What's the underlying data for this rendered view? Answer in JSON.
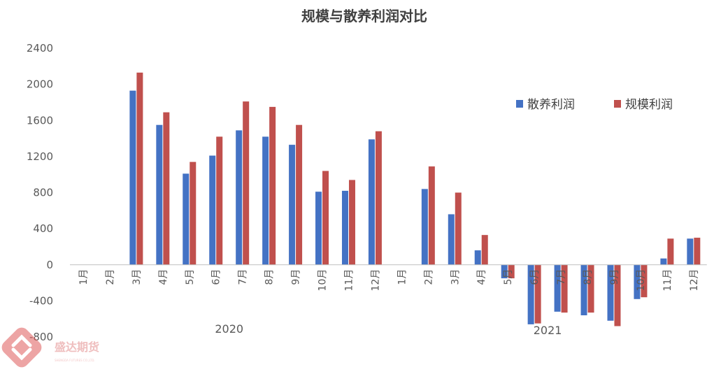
{
  "colors": {
    "scatter": "#4472C4",
    "scale": "#C0504D",
    "axis": "#BFBFBF",
    "text": "#595959",
    "watermark": "#E05A5A"
  },
  "watermark": {
    "name": "盛达期货",
    "sub": "SHENGDA FUTURES CO.,LTD."
  },
  "chart_data": {
    "type": "bar",
    "title": "规模与散养利润对比",
    "ylim": [
      -800,
      2400
    ],
    "yticks": [
      -800,
      -400,
      0,
      400,
      800,
      1200,
      1600,
      2000,
      2400
    ],
    "legend_position": "right",
    "grid": false,
    "categories": [
      "1月",
      "2月",
      "3月",
      "4月",
      "5月",
      "6月",
      "7月",
      "8月",
      "9月",
      "10月",
      "11月",
      "12月",
      "1月",
      "2月",
      "3月",
      "4月",
      "5月",
      "6月",
      "7月",
      "8月",
      "9月",
      "10月",
      "11月",
      "12月"
    ],
    "years": [
      {
        "label": "2020",
        "start": 0,
        "end": 11
      },
      {
        "label": "2021",
        "start": 12,
        "end": 23
      }
    ],
    "series": [
      {
        "name": "散养利润",
        "color": "#4472C4",
        "values": [
          null,
          null,
          1930,
          1550,
          1010,
          1210,
          1490,
          1420,
          1330,
          810,
          820,
          1390,
          null,
          840,
          560,
          160,
          -150,
          -660,
          -520,
          -560,
          -620,
          -380,
          70,
          290
        ]
      },
      {
        "name": "规模利润",
        "color": "#C0504D",
        "values": [
          null,
          null,
          2130,
          1690,
          1140,
          1420,
          1810,
          1750,
          1550,
          1040,
          940,
          1480,
          null,
          1090,
          800,
          330,
          -150,
          -650,
          -530,
          -530,
          -680,
          -360,
          290,
          300
        ]
      }
    ]
  }
}
